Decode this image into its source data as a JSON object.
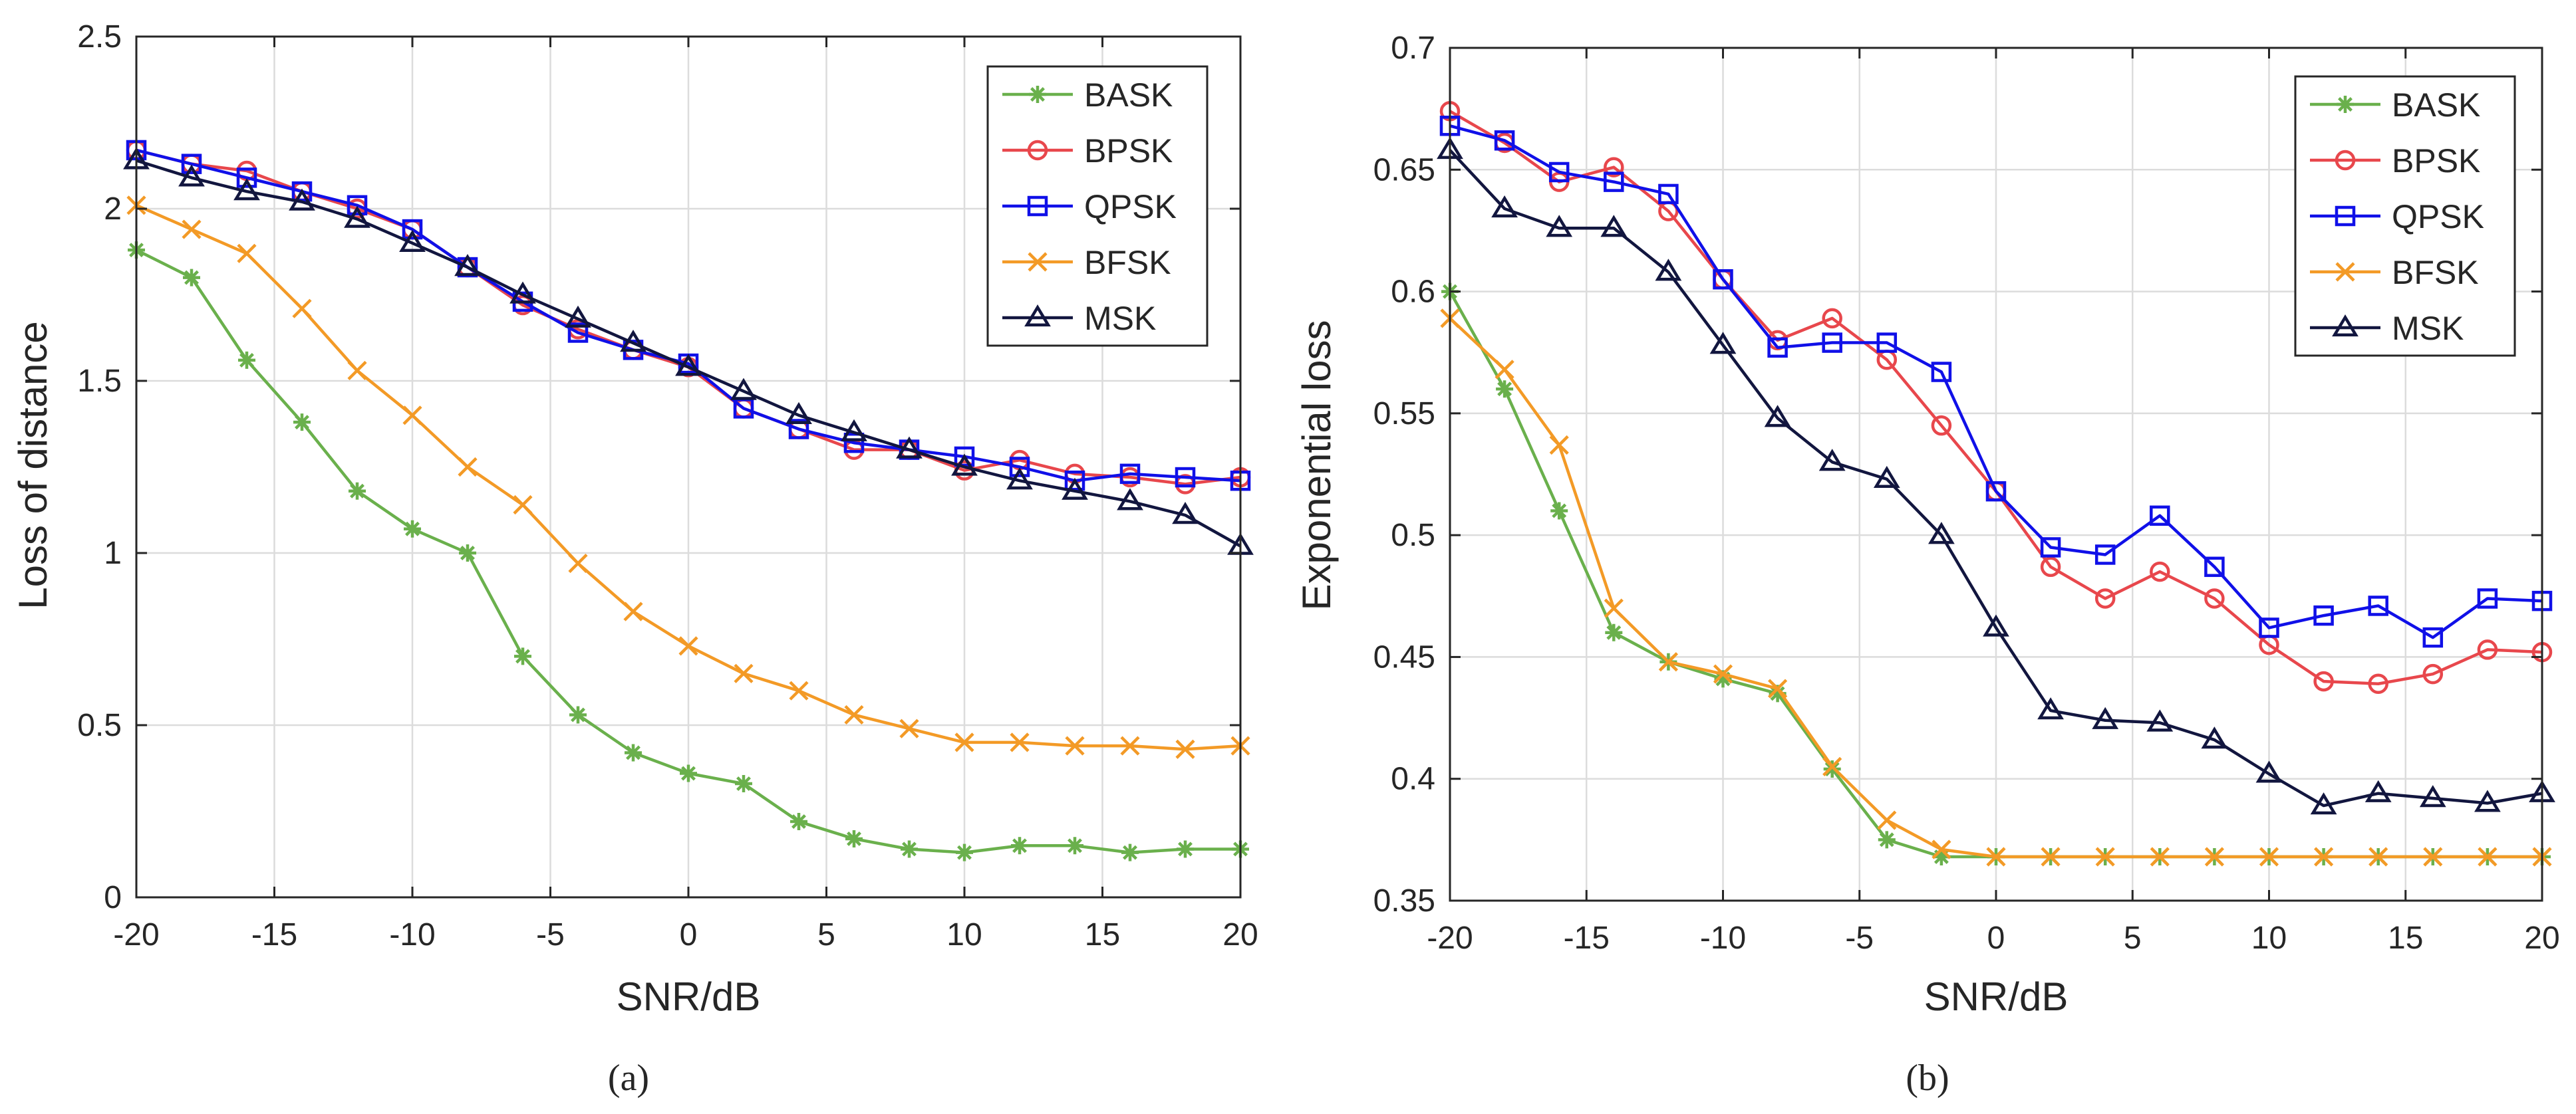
{
  "colors": {
    "BASK": "#6AB04C",
    "BPSK": "#E8474C",
    "QPSK": "#1010E8",
    "BFSK": "#F39A26",
    "MSK": "#12163F",
    "grid": "#DCDCDC",
    "axis": "#262626"
  },
  "chart_data": [
    {
      "type": "line",
      "caption": "(a)",
      "title": "",
      "xlabel": "SNR/dB",
      "ylabel": "Loss of distance",
      "xlim": [
        -20,
        20
      ],
      "ylim": [
        0,
        2.5
      ],
      "xticks": [
        -20,
        -15,
        -10,
        -5,
        0,
        5,
        10,
        15,
        20
      ],
      "xtick_labels": [
        "-20",
        "-15",
        "-10",
        "-5",
        "0",
        "5",
        "10",
        "15",
        "20"
      ],
      "yticks": [
        0,
        0.5,
        1,
        1.5,
        2,
        2.5
      ],
      "ytick_labels": [
        "0",
        "0.5",
        "1",
        "1.5",
        "2",
        "2.5"
      ],
      "grid": true,
      "legend_position": "top-right",
      "x": [
        -20,
        -18,
        -16,
        -14,
        -12,
        -10,
        -8,
        -6,
        -4,
        -2,
        0,
        2,
        4,
        6,
        8,
        10,
        12,
        14,
        16,
        18,
        20
      ],
      "series": [
        {
          "name": "BASK",
          "marker": "asterisk",
          "values": [
            1.88,
            1.8,
            1.56,
            1.38,
            1.18,
            1.07,
            1.0,
            0.7,
            0.53,
            0.42,
            0.36,
            0.33,
            0.22,
            0.17,
            0.14,
            0.13,
            0.15,
            0.15,
            0.13,
            0.14,
            0.14
          ]
        },
        {
          "name": "BPSK",
          "marker": "circle",
          "values": [
            2.17,
            2.13,
            2.11,
            2.05,
            2.0,
            1.94,
            1.83,
            1.72,
            1.65,
            1.59,
            1.54,
            1.42,
            1.36,
            1.3,
            1.3,
            1.24,
            1.27,
            1.23,
            1.22,
            1.2,
            1.22
          ]
        },
        {
          "name": "QPSK",
          "marker": "square",
          "values": [
            2.17,
            2.13,
            2.09,
            2.05,
            2.01,
            1.94,
            1.83,
            1.73,
            1.64,
            1.59,
            1.55,
            1.42,
            1.36,
            1.32,
            1.3,
            1.28,
            1.25,
            1.21,
            1.23,
            1.22,
            1.21
          ]
        },
        {
          "name": "BFSK",
          "marker": "cross",
          "values": [
            2.01,
            1.94,
            1.87,
            1.71,
            1.53,
            1.4,
            1.25,
            1.14,
            0.97,
            0.83,
            0.73,
            0.65,
            0.6,
            0.53,
            0.49,
            0.45,
            0.45,
            0.44,
            0.44,
            0.43,
            0.44
          ]
        },
        {
          "name": "MSK",
          "marker": "triangle",
          "values": [
            2.14,
            2.09,
            2.05,
            2.02,
            1.97,
            1.9,
            1.83,
            1.75,
            1.68,
            1.61,
            1.54,
            1.47,
            1.4,
            1.35,
            1.3,
            1.25,
            1.21,
            1.18,
            1.15,
            1.11,
            1.02
          ]
        }
      ]
    },
    {
      "type": "line",
      "caption": "(b)",
      "title": "",
      "xlabel": "SNR/dB",
      "ylabel": "Exponential loss",
      "xlim": [
        -20,
        20
      ],
      "ylim": [
        0.35,
        0.7
      ],
      "xticks": [
        -20,
        -15,
        -10,
        -5,
        0,
        5,
        10,
        15,
        20
      ],
      "xtick_labels": [
        "-20",
        "-15",
        "-10",
        "-5",
        "0",
        "5",
        "10",
        "15",
        "20"
      ],
      "yticks": [
        0.35,
        0.4,
        0.45,
        0.5,
        0.55,
        0.6,
        0.65,
        0.7
      ],
      "ytick_labels": [
        "0.35",
        "0.4",
        "0.45",
        "0.5",
        "0.55",
        "0.6",
        "0.65",
        "0.7"
      ],
      "grid": true,
      "legend_position": "top-right",
      "x": [
        -20,
        -18,
        -16,
        -14,
        -12,
        -10,
        -8,
        -6,
        -4,
        -2,
        0,
        2,
        4,
        6,
        8,
        10,
        12,
        14,
        16,
        18,
        20
      ],
      "series": [
        {
          "name": "BASK",
          "marker": "asterisk",
          "values": [
            0.6,
            0.56,
            0.51,
            0.46,
            0.448,
            0.441,
            0.435,
            0.404,
            0.375,
            0.368,
            0.368,
            0.368,
            0.368,
            0.368,
            0.368,
            0.368,
            0.368,
            0.368,
            0.368,
            0.368,
            0.368
          ]
        },
        {
          "name": "BPSK",
          "marker": "circle",
          "values": [
            0.674,
            0.661,
            0.645,
            0.651,
            0.633,
            0.605,
            0.58,
            0.589,
            0.572,
            0.545,
            0.518,
            0.487,
            0.474,
            0.485,
            0.474,
            0.455,
            0.44,
            0.439,
            0.443,
            0.453,
            0.452
          ]
        },
        {
          "name": "QPSK",
          "marker": "square",
          "values": [
            0.668,
            0.662,
            0.649,
            0.645,
            0.64,
            0.605,
            0.577,
            0.579,
            0.579,
            0.567,
            0.518,
            0.495,
            0.492,
            0.508,
            0.487,
            0.462,
            0.467,
            0.471,
            0.458,
            0.474,
            0.473
          ]
        },
        {
          "name": "BFSK",
          "marker": "cross",
          "values": [
            0.589,
            0.568,
            0.537,
            0.47,
            0.448,
            0.443,
            0.437,
            0.405,
            0.383,
            0.371,
            0.368,
            0.368,
            0.368,
            0.368,
            0.368,
            0.368,
            0.368,
            0.368,
            0.368,
            0.368,
            0.368
          ]
        },
        {
          "name": "MSK",
          "marker": "triangle",
          "values": [
            0.658,
            0.634,
            0.626,
            0.626,
            0.608,
            0.578,
            0.548,
            0.53,
            0.523,
            0.5,
            0.462,
            0.428,
            0.424,
            0.423,
            0.416,
            0.402,
            0.389,
            0.394,
            0.392,
            0.39,
            0.394
          ]
        }
      ]
    }
  ]
}
